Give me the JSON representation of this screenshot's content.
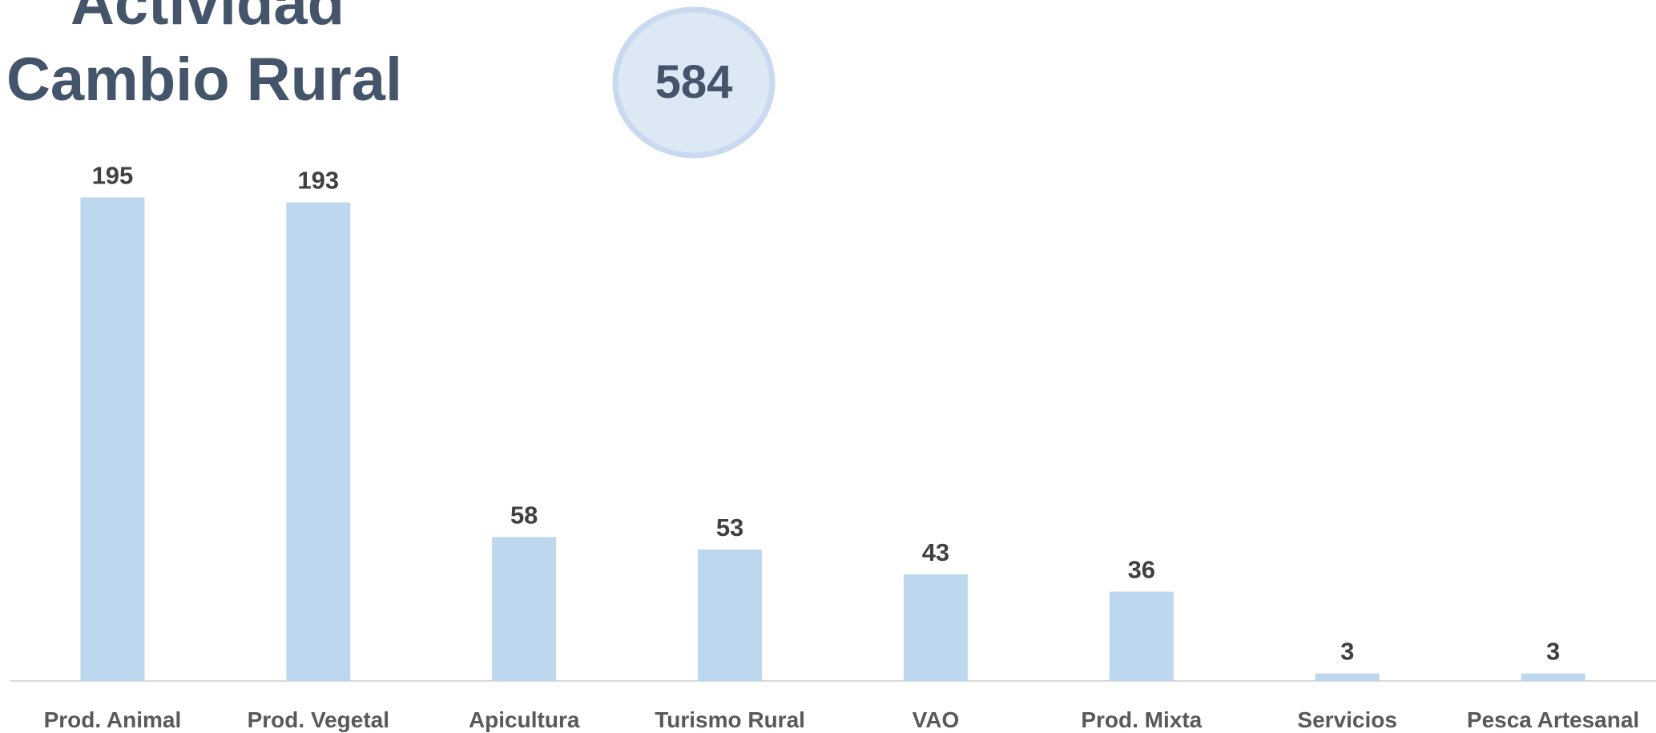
{
  "chart_data": {
    "type": "bar",
    "title": [
      "Actividad",
      "Cambio Rural"
    ],
    "total": 584,
    "categories": [
      "Prod. Animal",
      "Prod. Vegetal",
      "Apicultura",
      "Turismo Rural",
      "VAO",
      "Prod. Mixta",
      "Servicios",
      "Pesca Artesanal"
    ],
    "values": [
      195,
      193,
      58,
      53,
      43,
      36,
      3,
      3
    ],
    "color": "#bdd7ee",
    "ylim": [
      0,
      200
    ],
    "grid": false
  }
}
